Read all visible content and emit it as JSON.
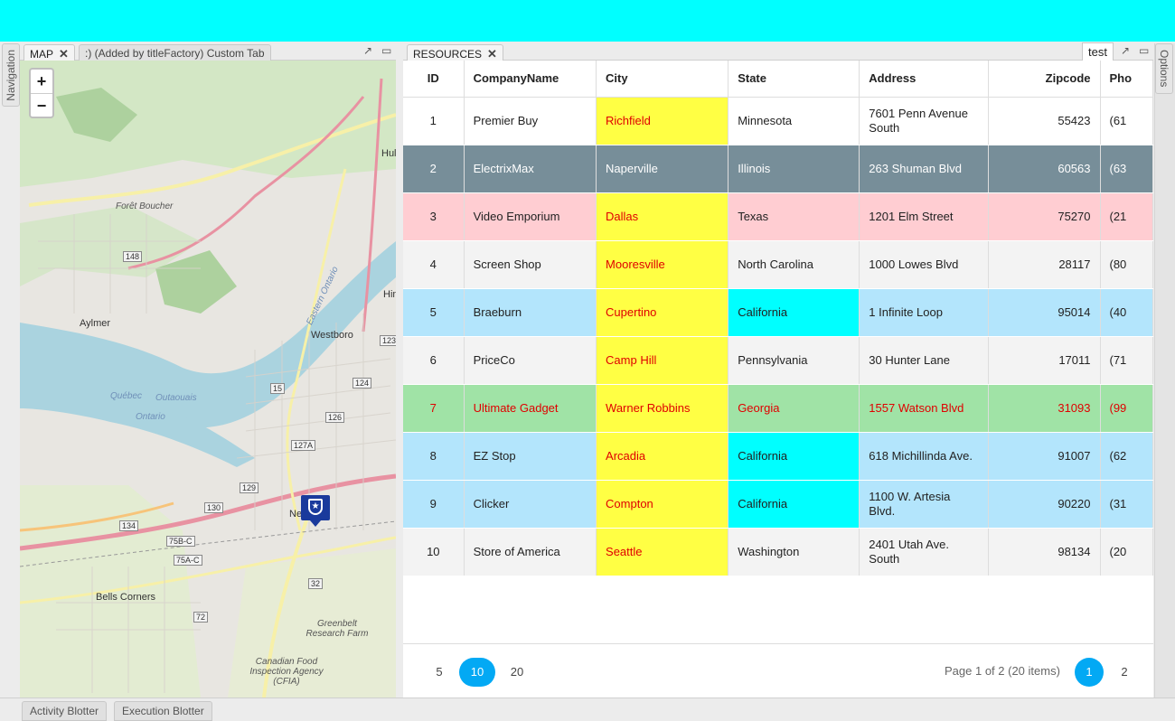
{
  "side": {
    "left_tab": "Navigation",
    "right_tab": "Options"
  },
  "map_panel": {
    "tabs": [
      {
        "label": "MAP",
        "close": "✕"
      },
      {
        "label": ":) (Added by titleFactory) Custom Tab"
      }
    ],
    "zoom_in": "+",
    "zoom_out": "−",
    "labels": {
      "foret": "Forêt Boucher",
      "aylmer": "Aylmer",
      "westboro": "Westboro",
      "quebec": "Québec",
      "outaouais": "Outaouais",
      "ontario": "Ontario",
      "eastern_ontario": "Eastern Ontario",
      "bells": "Bells Corners",
      "greenbelt": "Greenbelt Research Farm",
      "canadian": "Canadian Food Inspection Agency (CFIA)",
      "hul": "Hul",
      "hin": "Hin",
      "ne": "Ne"
    },
    "shields": [
      "148",
      "15",
      "32",
      "127A",
      "126",
      "124",
      "123",
      "129",
      "130",
      "134",
      "75B-C",
      "75A-C",
      "72"
    ]
  },
  "resources": {
    "tab": {
      "label": "RESOURCES",
      "close": "✕"
    },
    "test_label": "test",
    "columns": [
      "ID",
      "CompanyName",
      "City",
      "State",
      "Address",
      "Zipcode",
      "Pho"
    ],
    "rows": [
      {
        "id": "1",
        "company": "Premier Buy",
        "city": "Richfield",
        "state": "Minnesota",
        "address": "7601 Penn Avenue South",
        "zip": "55423",
        "phone": "(61"
      },
      {
        "id": "2",
        "company": "ElectrixMax",
        "city": "Naperville",
        "state": "Illinois",
        "address": "263 Shuman Blvd",
        "zip": "60563",
        "phone": "(63"
      },
      {
        "id": "3",
        "company": "Video Emporium",
        "city": "Dallas",
        "state": "Texas",
        "address": "1201 Elm Street",
        "zip": "75270",
        "phone": "(21"
      },
      {
        "id": "4",
        "company": "Screen Shop",
        "city": "Mooresville",
        "state": "North Carolina",
        "address": "1000 Lowes Blvd",
        "zip": "28117",
        "phone": "(80"
      },
      {
        "id": "5",
        "company": "Braeburn",
        "city": "Cupertino",
        "state": "California",
        "address": "1 Infinite Loop",
        "zip": "95014",
        "phone": "(40"
      },
      {
        "id": "6",
        "company": "PriceCo",
        "city": "Camp Hill",
        "state": "Pennsylvania",
        "address": "30 Hunter Lane",
        "zip": "17011",
        "phone": "(71"
      },
      {
        "id": "7",
        "company": "Ultimate Gadget",
        "city": "Warner Robbins",
        "state": "Georgia",
        "address": "1557 Watson Blvd",
        "zip": "31093",
        "phone": "(99"
      },
      {
        "id": "8",
        "company": "EZ Stop",
        "city": "Arcadia",
        "state": "California",
        "address": "618 Michillinda Ave.",
        "zip": "91007",
        "phone": "(62"
      },
      {
        "id": "9",
        "company": "Clicker",
        "city": "Compton",
        "state": "California",
        "address": "1100 W. Artesia Blvd.",
        "zip": "90220",
        "phone": "(31"
      },
      {
        "id": "10",
        "company": "Store of America",
        "city": "Seattle",
        "state": "Washington",
        "address": "2401 Utah Ave. South",
        "zip": "98134",
        "phone": "(20"
      }
    ],
    "pager": {
      "sizes": [
        "5",
        "10",
        "20"
      ],
      "info": "Page 1 of 2 (20 items)",
      "pages": [
        "1",
        "2"
      ]
    }
  },
  "bottom_tabs": [
    "Activity Blotter",
    "Execution Blotter"
  ],
  "colors": {
    "topbar": "#00ffff",
    "accent": "#03a9f4",
    "city_highlight": "#ffff44",
    "state_highlight": "#00ffff",
    "row_selected": "#778e99",
    "row_pink": "#ffcdd2",
    "row_blue": "#b3e5fc",
    "row_green": "#a0e3a6"
  }
}
